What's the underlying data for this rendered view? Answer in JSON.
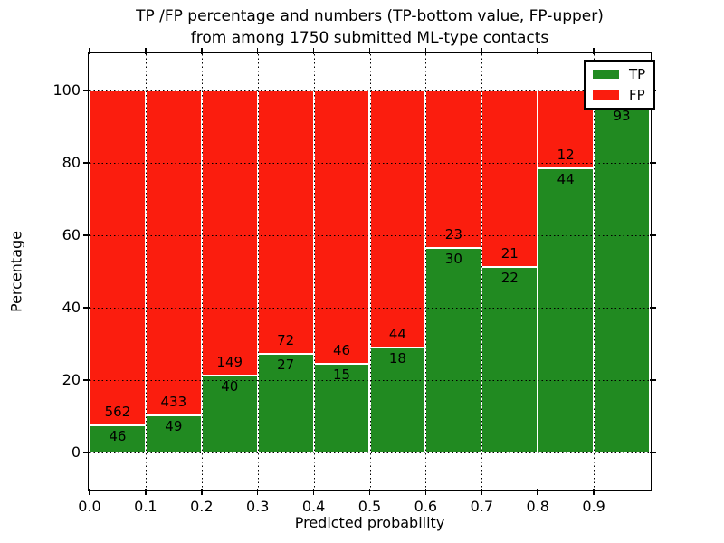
{
  "figure": {
    "title_line1": "TP /FP percentage and numbers (TP-bottom value, FP-upper)",
    "title_line2": "from among 1750 submitted ML-type contacts"
  },
  "chart_data": {
    "type": "bar",
    "subtype": "stacked_percentage",
    "title": "TP /FP percentage and numbers (TP-bottom value, FP-upper)\nfrom among 1750 submitted ML-type contacts",
    "xlabel": "Predicted probability",
    "ylabel": "Percentage",
    "xlim": [
      0.0,
      1.0
    ],
    "ylim": [
      -10,
      110
    ],
    "x_tick_labels": [
      "0.0",
      "0.1",
      "0.2",
      "0.3",
      "0.4",
      "0.5",
      "0.6",
      "0.7",
      "0.8",
      "0.9"
    ],
    "y_tick_labels": [
      "0",
      "20",
      "40",
      "60",
      "80",
      "100"
    ],
    "grid": true,
    "legend_position": "upper right",
    "bin_width": 0.1,
    "total_contacts": 1750,
    "legend": [
      {
        "label": "TP",
        "color": "#218a21"
      },
      {
        "label": "FP",
        "color": "#fb1d0e"
      }
    ],
    "bins": [
      {
        "x_start": 0.0,
        "tp_count": 46,
        "fp_count": 562,
        "tp_percent": 7.6
      },
      {
        "x_start": 0.1,
        "tp_count": 49,
        "fp_count": 433,
        "tp_percent": 10.2
      },
      {
        "x_start": 0.2,
        "tp_count": 40,
        "fp_count": 149,
        "tp_percent": 21.2
      },
      {
        "x_start": 0.3,
        "tp_count": 27,
        "fp_count": 72,
        "tp_percent": 27.3
      },
      {
        "x_start": 0.4,
        "tp_count": 15,
        "fp_count": 46,
        "tp_percent": 24.6
      },
      {
        "x_start": 0.5,
        "tp_count": 18,
        "fp_count": 44,
        "tp_percent": 29.0
      },
      {
        "x_start": 0.6,
        "tp_count": 30,
        "fp_count": 23,
        "tp_percent": 56.6
      },
      {
        "x_start": 0.7,
        "tp_count": 22,
        "fp_count": 21,
        "tp_percent": 51.2
      },
      {
        "x_start": 0.8,
        "tp_count": 44,
        "fp_count": 12,
        "tp_percent": 78.6
      },
      {
        "x_start": 0.9,
        "tp_count": 93,
        "fp_count": null,
        "tp_percent": 95.9
      }
    ]
  }
}
